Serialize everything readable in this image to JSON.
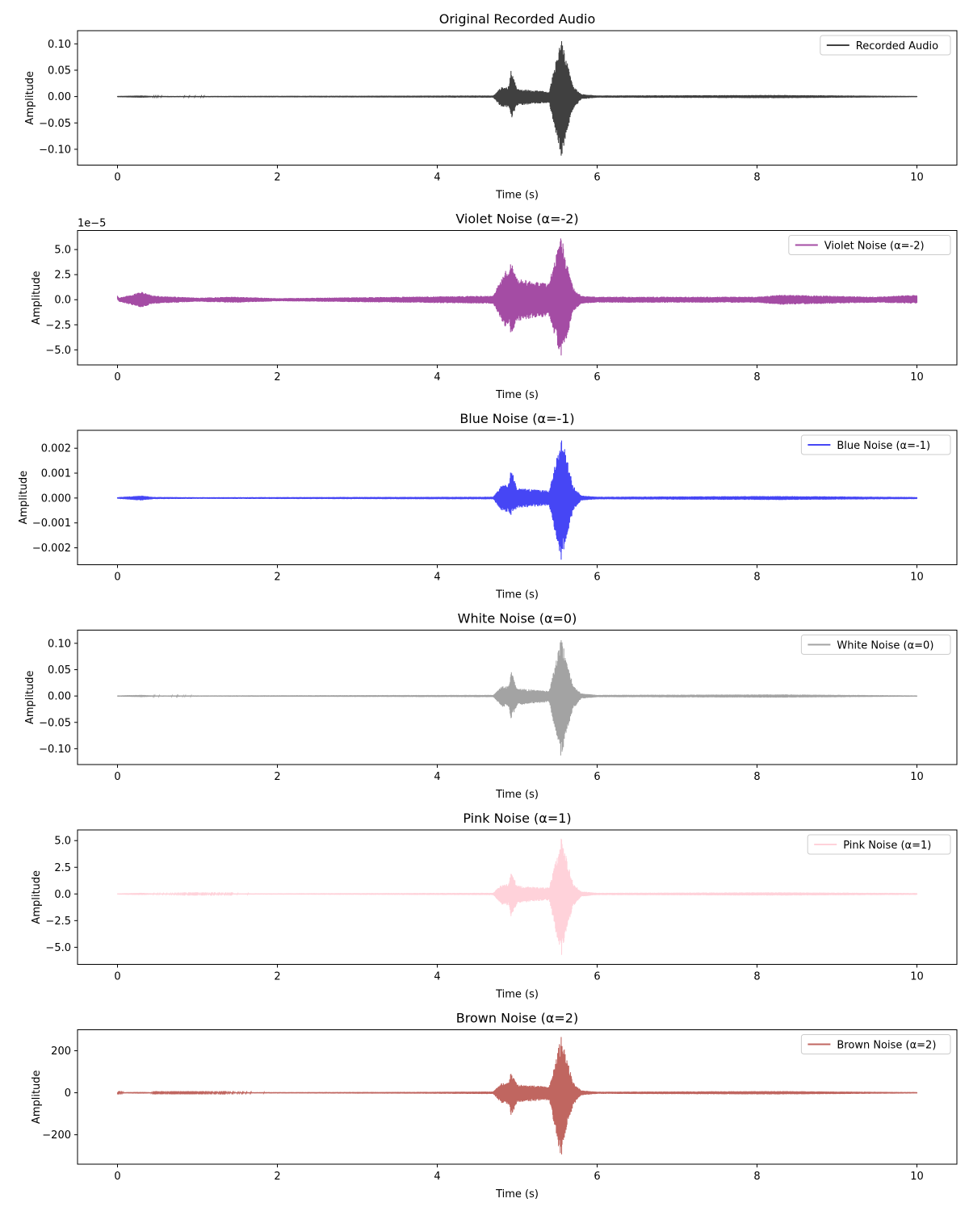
{
  "chart_data": [
    {
      "type": "line",
      "title": "Original Recorded Audio",
      "xlabel": "Time (s)",
      "ylabel": "Amplitude",
      "offset_label": "",
      "xlim": [
        -0.5,
        10.5
      ],
      "ylim": [
        -0.13,
        0.125
      ],
      "xticks": [
        0,
        2,
        4,
        6,
        8,
        10
      ],
      "yticks": [
        -0.1,
        -0.05,
        0.0,
        0.05,
        0.1
      ],
      "ytick_labels": [
        "−0.10",
        "−0.05",
        "0.00",
        "0.05",
        "0.10"
      ],
      "grid": false,
      "legend_position": "top-right",
      "series": [
        {
          "name": "Recorded Audio",
          "color": "#404040",
          "envelope": {
            "t": [
              0.0,
              0.3,
              0.45,
              1.0,
              4.7,
              4.8,
              4.9,
              4.92,
              5.0,
              5.2,
              5.4,
              5.55,
              5.6,
              5.7,
              5.8,
              6.0,
              8.25,
              10.0
            ],
            "upper": [
              0.001,
              0.002,
              0.001,
              0.001,
              0.002,
              0.018,
              0.02,
              0.05,
              0.015,
              0.012,
              0.01,
              0.113,
              0.08,
              0.02,
              0.005,
              0.002,
              0.003,
              0.001
            ],
            "lower": [
              -0.001,
              -0.002,
              -0.001,
              -0.001,
              -0.002,
              -0.02,
              -0.022,
              -0.045,
              -0.018,
              -0.014,
              -0.012,
              -0.12,
              -0.08,
              -0.025,
              -0.005,
              -0.002,
              -0.003,
              -0.001
            ]
          }
        }
      ]
    },
    {
      "type": "line",
      "title": "Violet Noise (α=-2)",
      "xlabel": "Time (s)",
      "ylabel": "Amplitude",
      "offset_label": "1e−5",
      "xlim": [
        -0.5,
        10.5
      ],
      "ylim": [
        -6.5,
        6.9
      ],
      "xticks": [
        0,
        2,
        4,
        6,
        8,
        10
      ],
      "yticks": [
        -5.0,
        -2.5,
        0.0,
        2.5,
        5.0
      ],
      "ytick_labels": [
        "−5.0",
        "−2.5",
        "0.0",
        "2.5",
        "5.0"
      ],
      "grid": false,
      "legend_position": "top-right",
      "series": [
        {
          "name": "Violet Noise (α=-2)",
          "color": "#a44ca4",
          "envelope": {
            "t": [
              0.0,
              0.02,
              0.3,
              0.45,
              1.0,
              1.45,
              2.0,
              4.7,
              4.85,
              4.9,
              4.92,
              5.0,
              5.2,
              5.4,
              5.55,
              5.6,
              5.7,
              5.8,
              6.0,
              8.0,
              8.3,
              9.5,
              10.0
            ],
            "upper": [
              0.4,
              0.2,
              0.8,
              0.4,
              0.2,
              0.3,
              0.15,
              0.4,
              3.0,
              2.5,
              4.0,
              2.2,
              1.8,
              1.7,
              6.6,
              4.5,
              1.2,
              0.4,
              0.3,
              0.3,
              0.5,
              0.3,
              0.5
            ],
            "lower": [
              0.0,
              -0.2,
              -0.8,
              -0.4,
              -0.2,
              -0.3,
              -0.15,
              -0.4,
              -2.8,
              -2.5,
              -3.4,
              -2.2,
              -1.8,
              -1.7,
              -5.8,
              -4.5,
              -1.2,
              -0.4,
              -0.3,
              -0.3,
              -0.5,
              -0.3,
              -0.4
            ]
          }
        }
      ]
    },
    {
      "type": "line",
      "title": "Blue Noise (α=-1)",
      "xlabel": "Time (s)",
      "ylabel": "Amplitude",
      "offset_label": "",
      "xlim": [
        -0.5,
        10.5
      ],
      "ylim": [
        -0.00268,
        0.00272
      ],
      "xticks": [
        0,
        2,
        4,
        6,
        8,
        10
      ],
      "yticks": [
        -0.002,
        -0.001,
        0.0,
        0.001,
        0.002
      ],
      "ytick_labels": [
        "−0.002",
        "−0.001",
        "0.000",
        "0.001",
        "0.002"
      ],
      "grid": false,
      "legend_position": "top-right",
      "series": [
        {
          "name": "Blue Noise (α=-1)",
          "color": "#4646f5",
          "envelope": {
            "t": [
              0.0,
              0.3,
              0.45,
              1.0,
              4.7,
              4.8,
              4.9,
              4.92,
              5.0,
              5.2,
              5.4,
              5.55,
              5.6,
              5.7,
              5.8,
              6.0,
              8.25,
              10.0
            ],
            "upper": [
              3e-05,
              0.0001,
              4e-05,
              3e-05,
              5e-05,
              0.0005,
              0.0006,
              0.00125,
              0.0004,
              0.00035,
              0.0003,
              0.00245,
              0.0019,
              0.0005,
              0.0001,
              5e-05,
              8e-05,
              4e-05
            ],
            "lower": [
              -3e-05,
              -0.0001,
              -4e-05,
              -3e-05,
              -5e-05,
              -0.0005,
              -0.0006,
              -0.0007,
              -0.0004,
              -0.00035,
              -0.0003,
              -0.0025,
              -0.0019,
              -0.0005,
              -0.0001,
              -5e-05,
              -8e-05,
              -4e-05
            ]
          }
        }
      ]
    },
    {
      "type": "line",
      "title": "White Noise (α=0)",
      "xlabel": "Time (s)",
      "ylabel": "Amplitude",
      "offset_label": "",
      "xlim": [
        -0.5,
        10.5
      ],
      "ylim": [
        -0.13,
        0.125
      ],
      "xticks": [
        0,
        2,
        4,
        6,
        8,
        10
      ],
      "yticks": [
        -0.1,
        -0.05,
        0.0,
        0.05,
        0.1
      ],
      "ytick_labels": [
        "−0.10",
        "−0.05",
        "0.00",
        "0.05",
        "0.10"
      ],
      "grid": false,
      "legend_position": "top-right",
      "series": [
        {
          "name": "White Noise (α=0)",
          "color": "#a3a3a3",
          "envelope": {
            "t": [
              0.0,
              0.3,
              0.45,
              1.0,
              4.7,
              4.8,
              4.9,
              4.92,
              5.0,
              5.2,
              5.4,
              5.55,
              5.6,
              5.7,
              5.8,
              6.0,
              8.25,
              10.0
            ],
            "upper": [
              0.001,
              0.002,
              0.001,
              0.001,
              0.002,
              0.018,
              0.02,
              0.05,
              0.015,
              0.012,
              0.01,
              0.113,
              0.08,
              0.02,
              0.005,
              0.002,
              0.003,
              0.001
            ],
            "lower": [
              -0.001,
              -0.002,
              -0.001,
              -0.001,
              -0.002,
              -0.02,
              -0.022,
              -0.045,
              -0.018,
              -0.014,
              -0.012,
              -0.12,
              -0.08,
              -0.025,
              -0.005,
              -0.002,
              -0.003,
              -0.001
            ]
          }
        }
      ]
    },
    {
      "type": "line",
      "title": "Pink Noise (α=1)",
      "xlabel": "Time (s)",
      "ylabel": "Amplitude",
      "offset_label": "",
      "xlim": [
        -0.5,
        10.5
      ],
      "ylim": [
        -6.6,
        6.0
      ],
      "xticks": [
        0,
        2,
        4,
        6,
        8,
        10
      ],
      "yticks": [
        -5.0,
        -2.5,
        0.0,
        2.5,
        5.0
      ],
      "ytick_labels": [
        "−5.0",
        "−2.5",
        "0.0",
        "2.5",
        "5.0"
      ],
      "grid": false,
      "legend_position": "top-right",
      "series": [
        {
          "name": "Pink Noise (α=1)",
          "color": "#ffd2da",
          "envelope": {
            "t": [
              0.0,
              0.3,
              0.45,
              1.0,
              4.7,
              4.8,
              4.9,
              4.92,
              5.0,
              5.2,
              5.4,
              5.55,
              5.6,
              5.7,
              5.8,
              6.0,
              8.25,
              10.0
            ],
            "upper": [
              0.05,
              0.1,
              0.05,
              0.04,
              0.1,
              0.9,
              1.0,
              2.2,
              0.8,
              0.7,
              0.6,
              5.4,
              4.0,
              1.0,
              0.25,
              0.1,
              0.15,
              0.08
            ],
            "lower": [
              -0.05,
              -0.1,
              -0.05,
              -0.04,
              -0.1,
              -1.0,
              -1.1,
              -2.3,
              -0.9,
              -0.7,
              -0.6,
              -6.0,
              -4.0,
              -1.2,
              -0.25,
              -0.1,
              -0.15,
              -0.08
            ]
          }
        }
      ]
    },
    {
      "type": "line",
      "title": "Brown Noise (α=2)",
      "xlabel": "Time (s)",
      "ylabel": "Amplitude",
      "offset_label": "",
      "xlim": [
        -0.5,
        10.5
      ],
      "ylim": [
        -340,
        300
      ],
      "xticks": [
        0,
        2,
        4,
        6,
        8,
        10
      ],
      "yticks": [
        -200,
        0,
        200
      ],
      "ytick_labels": [
        "−200",
        "0",
        "200"
      ],
      "grid": false,
      "legend_position": "top-right",
      "series": [
        {
          "name": "Brown Noise (α=2)",
          "color": "#c06660",
          "envelope": {
            "t": [
              0.0,
              0.3,
              0.45,
              1.0,
              3.8,
              4.7,
              4.8,
              4.9,
              4.92,
              5.0,
              5.2,
              5.4,
              5.55,
              5.6,
              5.7,
              5.8,
              6.0,
              8.25,
              10.0
            ],
            "upper": [
              2,
              4,
              2,
              2,
              4,
              6,
              45,
              50,
              100,
              40,
              35,
              30,
              270,
              200,
              50,
              12,
              5,
              8,
              3
            ],
            "lower": [
              -2,
              -4,
              -2,
              -2,
              -4,
              -6,
              -50,
              -55,
              -120,
              -45,
              -40,
              -35,
              -320,
              -200,
              -60,
              -12,
              -5,
              -8,
              -3
            ]
          }
        }
      ]
    }
  ]
}
